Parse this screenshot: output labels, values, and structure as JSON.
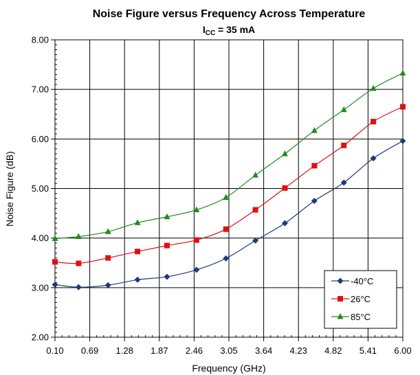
{
  "chart_data": {
    "type": "line",
    "title": "Noise Figure versus Frequency Across Temperature",
    "subtitle": {
      "prefix": "I",
      "subscript": "CC",
      "rest": " = 35 mA"
    },
    "xlabel": "Frequency (GHz)",
    "ylabel": "Noise Figure (dB)",
    "xlim": [
      0.1,
      6.0
    ],
    "ylim": [
      2.0,
      8.0
    ],
    "x_ticks": [
      "0.10",
      "0.69",
      "1.28",
      "1.87",
      "2.46",
      "3.05",
      "3.64",
      "4.23",
      "4.82",
      "5.41",
      "6.00"
    ],
    "y_ticks": [
      "2.00",
      "3.00",
      "4.00",
      "5.00",
      "6.00",
      "7.00",
      "8.00"
    ],
    "grid": true,
    "legend_position": "bottom-right",
    "x": [
      0.1,
      0.5,
      1.0,
      1.5,
      2.0,
      2.5,
      3.0,
      3.5,
      4.0,
      4.5,
      5.0,
      5.5,
      6.0
    ],
    "series": [
      {
        "name": "-40°C",
        "color": "#1F3A7A",
        "marker": "diamond",
        "values": [
          3.06,
          3.01,
          3.05,
          3.16,
          3.22,
          3.36,
          3.59,
          3.95,
          4.3,
          4.75,
          5.12,
          5.61,
          5.96
        ]
      },
      {
        "name": "26°C",
        "color": "#E01010",
        "marker": "square",
        "values": [
          3.52,
          3.49,
          3.6,
          3.73,
          3.85,
          3.96,
          4.18,
          4.57,
          5.01,
          5.46,
          5.87,
          6.35,
          6.65
        ]
      },
      {
        "name": "85°C",
        "color": "#1E8C1E",
        "marker": "triangle",
        "values": [
          3.99,
          4.03,
          4.13,
          4.31,
          4.43,
          4.57,
          4.82,
          5.27,
          5.7,
          6.17,
          6.59,
          7.02,
          7.33
        ]
      }
    ]
  }
}
